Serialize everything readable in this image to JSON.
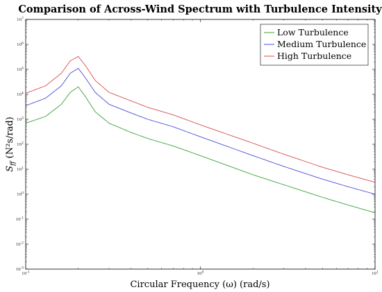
{
  "chart_data": {
    "type": "line",
    "title": "Comparison of Across-Wind Spectrum with Turbulence Intensity",
    "xlabel": "Circular Frequency (ω) (rad/s)",
    "ylabel": "S_ff (N²s/rad)",
    "x_scale": "log",
    "y_scale": "log",
    "xlim": [
      0.1,
      10
    ],
    "ylim": [
      0.001,
      10000000
    ],
    "grid": false,
    "legend_position": "top-right",
    "x_ticks": [
      {
        "value": 0.1,
        "base": "10",
        "exp": "-1"
      },
      {
        "value": 1,
        "base": "10",
        "exp": "0"
      },
      {
        "value": 10,
        "base": "10",
        "exp": "1"
      }
    ],
    "y_ticks": [
      {
        "value": 0.001,
        "base": "10",
        "exp": "-3"
      },
      {
        "value": 0.01,
        "base": "10",
        "exp": "-2"
      },
      {
        "value": 0.1,
        "base": "10",
        "exp": "-1"
      },
      {
        "value": 1,
        "base": "10",
        "exp": "0"
      },
      {
        "value": 10,
        "base": "10",
        "exp": "1"
      },
      {
        "value": 100,
        "base": "10",
        "exp": "2"
      },
      {
        "value": 1000,
        "base": "10",
        "exp": "3"
      },
      {
        "value": 10000,
        "base": "10",
        "exp": "4"
      },
      {
        "value": 100000,
        "base": "10",
        "exp": "5"
      },
      {
        "value": 1000000,
        "base": "10",
        "exp": "6"
      },
      {
        "value": 10000000,
        "base": "10",
        "exp": "7"
      }
    ],
    "series": [
      {
        "name": "Low Turbulence",
        "color": "#3aa03a",
        "x": [
          0.1,
          0.13,
          0.16,
          0.18,
          0.2,
          0.22,
          0.25,
          0.3,
          0.4,
          0.5,
          0.7,
          1,
          2,
          3,
          5,
          7,
          10
        ],
        "y": [
          700,
          1300,
          4000,
          12000,
          20000,
          8000,
          2000,
          700,
          300,
          170,
          85,
          35,
          6,
          2.4,
          0.75,
          0.37,
          0.18
        ]
      },
      {
        "name": "Medium Turbulence",
        "color": "#4b4bd8",
        "x": [
          0.1,
          0.13,
          0.16,
          0.18,
          0.2,
          0.22,
          0.25,
          0.3,
          0.4,
          0.5,
          0.7,
          1,
          2,
          3,
          5,
          7,
          10
        ],
        "y": [
          3500,
          7000,
          22000,
          70000,
          110000,
          45000,
          12000,
          4000,
          1800,
          1000,
          500,
          200,
          35,
          13,
          4,
          2,
          1
        ]
      },
      {
        "name": "High Turbulence",
        "color": "#d84a4a",
        "x": [
          0.1,
          0.13,
          0.16,
          0.18,
          0.2,
          0.22,
          0.25,
          0.3,
          0.4,
          0.5,
          0.7,
          1,
          2,
          3,
          5,
          7,
          10
        ],
        "y": [
          11000,
          22000,
          70000,
          220000,
          330000,
          140000,
          36000,
          12000,
          5500,
          3000,
          1500,
          600,
          110,
          40,
          12,
          6,
          3
        ]
      }
    ]
  }
}
